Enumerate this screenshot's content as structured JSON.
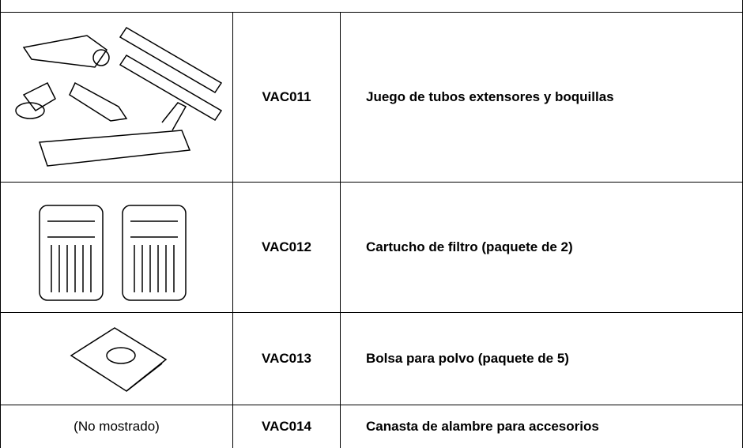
{
  "table": {
    "rows": [
      {
        "code": "VAC011",
        "description": "Juego de tubos extensores y boquillas"
      },
      {
        "code": "VAC012",
        "description": "Cartucho de filtro (paquete de 2)"
      },
      {
        "code": "VAC013",
        "description": "Bolsa para polvo (paquete de 5)"
      },
      {
        "image_text": "(No mostrado)",
        "code": "VAC014",
        "description": "Canasta de alambre para accesorios"
      }
    ]
  }
}
